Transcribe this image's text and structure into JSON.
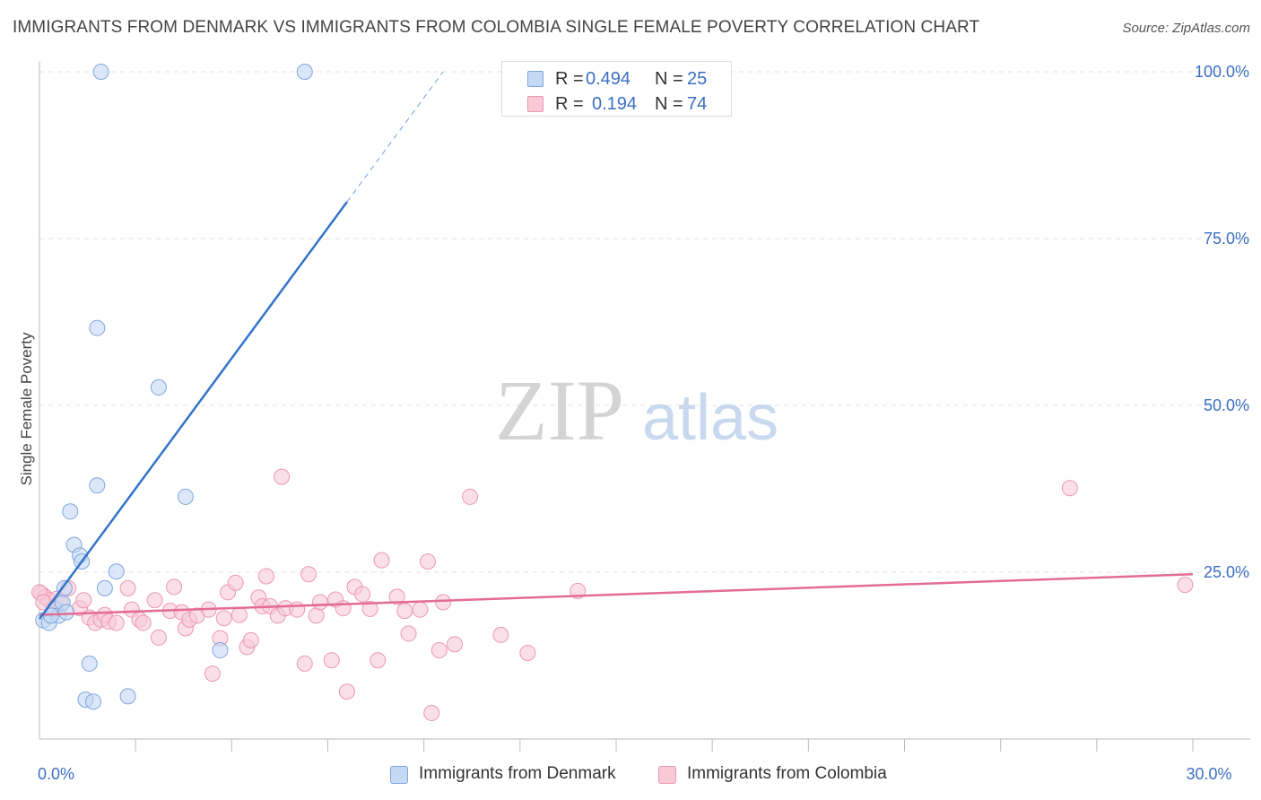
{
  "title": "IMMIGRANTS FROM DENMARK VS IMMIGRANTS FROM COLOMBIA SINGLE FEMALE POVERTY CORRELATION CHART",
  "source": "Source: ZipAtlas.com",
  "watermark": {
    "zip": "ZIP",
    "atlas": "atlas"
  },
  "legend": {
    "r_label": "R =",
    "n_label": "N =",
    "series": [
      {
        "name": "Immigrants from Denmark",
        "r": "0.494",
        "n": "25"
      },
      {
        "name": "Immigrants from Colombia",
        "r": "0.194",
        "n": "74"
      }
    ]
  },
  "colors": {
    "denmark_fill": "#c5d9f5",
    "denmark_stroke": "#7ea6dd",
    "denmark_line": "#3374c9",
    "colombia_fill": "#f8cad8",
    "colombia_stroke": "#eb98b3",
    "colombia_line": "#e36c97",
    "tick_label": "#3b6fc4",
    "grid": "#e2e2e2"
  },
  "chart_data": {
    "type": "scatter",
    "title": "IMMIGRANTS FROM DENMARK VS IMMIGRANTS FROM COLOMBIA SINGLE FEMALE POVERTY CORRELATION CHART",
    "xlabel": "",
    "ylabel": "Single Female Poverty",
    "xlim": [
      0,
      30
    ],
    "ylim": [
      0,
      102
    ],
    "x_tick_labels": [
      {
        "value": 0,
        "label": "0.0%"
      },
      {
        "value": 30,
        "label": "30.0%"
      }
    ],
    "y_tick_labels": [
      {
        "value": 25,
        "label": "25.0%"
      },
      {
        "value": 50,
        "label": "50.0%"
      },
      {
        "value": 75,
        "label": "75.0%"
      },
      {
        "value": 100,
        "label": "100.0%"
      }
    ],
    "grid": "horizontal dashed",
    "legend_position": "top-center",
    "series": [
      {
        "name": "Immigrants from Denmark",
        "r": 0.494,
        "n": 25,
        "points": [
          [
            0.1,
            17.8
          ],
          [
            0.25,
            17.4
          ],
          [
            0.4,
            19.5
          ],
          [
            0.5,
            18.5
          ],
          [
            0.6,
            20.4
          ],
          [
            0.65,
            22.6
          ],
          [
            0.8,
            34.1
          ],
          [
            0.9,
            29.1
          ],
          [
            1.05,
            27.5
          ],
          [
            1.1,
            26.6
          ],
          [
            1.3,
            11.3
          ],
          [
            1.2,
            5.9
          ],
          [
            1.4,
            5.6
          ],
          [
            1.5,
            61.6
          ],
          [
            1.5,
            38.0
          ],
          [
            1.6,
            100.0
          ],
          [
            1.7,
            22.6
          ],
          [
            2.0,
            25.1
          ],
          [
            2.3,
            6.4
          ],
          [
            3.1,
            52.7
          ],
          [
            3.8,
            36.3
          ],
          [
            4.7,
            13.3
          ],
          [
            6.9,
            100.0
          ],
          [
            0.3,
            18.5
          ],
          [
            0.7,
            19.0
          ]
        ],
        "trend": {
          "x": [
            0,
            8.0
          ],
          "y": [
            18.0,
            80.5
          ],
          "dashed_to": [
            10.5,
            100.0
          ]
        }
      },
      {
        "name": "Immigrants from Colombia",
        "r": 0.194,
        "n": 74,
        "points": [
          [
            0.05,
            21.8
          ],
          [
            0.15,
            21.3
          ],
          [
            0.25,
            20.8
          ],
          [
            0.35,
            19.7
          ],
          [
            0.45,
            21.0
          ],
          [
            0.55,
            20.3
          ],
          [
            0.75,
            22.6
          ],
          [
            1.05,
            19.6
          ],
          [
            1.15,
            20.8
          ],
          [
            1.3,
            18.2
          ],
          [
            1.45,
            17.4
          ],
          [
            1.6,
            17.9
          ],
          [
            1.7,
            18.6
          ],
          [
            1.8,
            17.6
          ],
          [
            2.0,
            17.4
          ],
          [
            2.3,
            22.6
          ],
          [
            2.4,
            19.4
          ],
          [
            2.6,
            17.9
          ],
          [
            2.7,
            17.4
          ],
          [
            3.0,
            20.8
          ],
          [
            3.1,
            15.2
          ],
          [
            3.4,
            19.2
          ],
          [
            3.5,
            22.8
          ],
          [
            3.7,
            19.0
          ],
          [
            3.8,
            16.6
          ],
          [
            3.9,
            17.9
          ],
          [
            4.1,
            18.5
          ],
          [
            4.4,
            19.4
          ],
          [
            4.5,
            9.8
          ],
          [
            4.7,
            15.1
          ],
          [
            4.8,
            18.1
          ],
          [
            4.9,
            22.0
          ],
          [
            5.1,
            23.4
          ],
          [
            5.2,
            18.6
          ],
          [
            5.4,
            13.8
          ],
          [
            5.5,
            14.8
          ],
          [
            5.7,
            21.2
          ],
          [
            5.8,
            19.9
          ],
          [
            5.9,
            24.4
          ],
          [
            6.0,
            19.9
          ],
          [
            6.2,
            18.5
          ],
          [
            6.3,
            39.3
          ],
          [
            6.4,
            19.6
          ],
          [
            6.7,
            19.4
          ],
          [
            6.9,
            11.3
          ],
          [
            7.0,
            24.7
          ],
          [
            7.2,
            18.5
          ],
          [
            7.3,
            20.5
          ],
          [
            7.6,
            11.8
          ],
          [
            7.7,
            20.9
          ],
          [
            7.9,
            19.6
          ],
          [
            8.0,
            7.1
          ],
          [
            8.2,
            22.8
          ],
          [
            8.4,
            21.7
          ],
          [
            8.6,
            19.5
          ],
          [
            8.8,
            11.8
          ],
          [
            8.9,
            26.8
          ],
          [
            9.3,
            21.3
          ],
          [
            9.5,
            19.2
          ],
          [
            9.6,
            15.8
          ],
          [
            9.9,
            19.4
          ],
          [
            10.1,
            26.6
          ],
          [
            10.2,
            3.9
          ],
          [
            10.4,
            13.3
          ],
          [
            10.5,
            20.5
          ],
          [
            10.8,
            14.2
          ],
          [
            11.2,
            36.3
          ],
          [
            12.0,
            15.6
          ],
          [
            12.7,
            12.9
          ],
          [
            14.0,
            22.2
          ],
          [
            26.8,
            37.6
          ],
          [
            29.8,
            23.1
          ],
          [
            0.0,
            22.0
          ],
          [
            0.1,
            20.5
          ]
        ],
        "trend": {
          "x": [
            0,
            30.0
          ],
          "y": [
            18.6,
            24.7
          ]
        }
      }
    ]
  }
}
